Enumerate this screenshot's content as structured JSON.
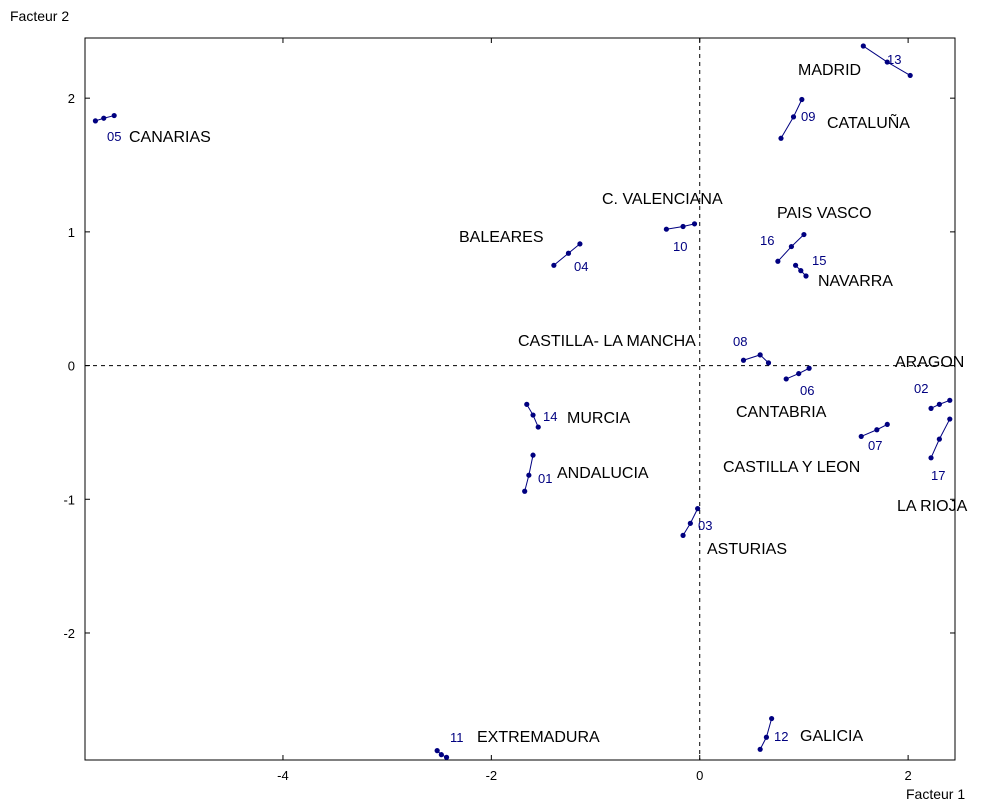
{
  "chart_data": {
    "type": "scatter",
    "xlabel": "Facteur 1",
    "ylabel": "Facteur 2",
    "xlim": [
      -5.9,
      2.45
    ],
    "ylim": [
      -2.95,
      2.45
    ],
    "xticks": [
      -4,
      -2,
      0,
      2
    ],
    "yticks": [
      -2,
      -1,
      0,
      1,
      2
    ],
    "reference_lines": {
      "x": 0,
      "y": 0,
      "style": "dashed"
    },
    "point_color": "#000080",
    "regions": [
      {
        "code": "01",
        "name": "ANDALUCIA",
        "points": [
          [
            -1.68,
            -0.94
          ],
          [
            -1.64,
            -0.82
          ],
          [
            -1.6,
            -0.67
          ]
        ]
      },
      {
        "code": "02",
        "name": "ARAGON",
        "points": [
          [
            2.22,
            -0.32
          ],
          [
            2.3,
            -0.29
          ],
          [
            2.4,
            -0.26
          ]
        ]
      },
      {
        "code": "03",
        "name": "ASTURIAS",
        "points": [
          [
            -0.16,
            -1.27
          ],
          [
            -0.09,
            -1.18
          ],
          [
            -0.02,
            -1.07
          ]
        ]
      },
      {
        "code": "04",
        "name": "BALEARES",
        "points": [
          [
            -1.4,
            0.75
          ],
          [
            -1.26,
            0.84
          ],
          [
            -1.15,
            0.91
          ]
        ]
      },
      {
        "code": "05",
        "name": "CANARIAS",
        "points": [
          [
            -5.8,
            1.83
          ],
          [
            -5.72,
            1.85
          ],
          [
            -5.62,
            1.87
          ]
        ]
      },
      {
        "code": "06",
        "name": "CANTABRIA",
        "points": [
          [
            0.83,
            -0.1
          ],
          [
            0.95,
            -0.06
          ],
          [
            1.05,
            -0.02
          ]
        ]
      },
      {
        "code": "07",
        "name": "CASTILLA Y LEON",
        "points": [
          [
            1.55,
            -0.53
          ],
          [
            1.7,
            -0.48
          ],
          [
            1.8,
            -0.44
          ]
        ]
      },
      {
        "code": "08",
        "name": "CASTILLA- LA MANCHA",
        "points": [
          [
            0.42,
            0.04
          ],
          [
            0.58,
            0.08
          ],
          [
            0.66,
            0.02
          ]
        ]
      },
      {
        "code": "09",
        "name": "CATALUÑA",
        "points": [
          [
            0.78,
            1.7
          ],
          [
            0.9,
            1.86
          ],
          [
            0.98,
            1.99
          ]
        ]
      },
      {
        "code": "10",
        "name": "C. VALENCIANA",
        "points": [
          [
            -0.32,
            1.02
          ],
          [
            -0.16,
            1.04
          ],
          [
            -0.05,
            1.06
          ]
        ]
      },
      {
        "code": "11",
        "name": "EXTREMADURA",
        "points": [
          [
            -2.52,
            -2.88
          ],
          [
            -2.48,
            -2.91
          ],
          [
            -2.43,
            -2.93
          ]
        ]
      },
      {
        "code": "12",
        "name": "GALICIA",
        "points": [
          [
            0.58,
            -2.87
          ],
          [
            0.64,
            -2.78
          ],
          [
            0.69,
            -2.64
          ]
        ]
      },
      {
        "code": "13",
        "name": "MADRID",
        "points": [
          [
            1.57,
            2.39
          ],
          [
            1.8,
            2.27
          ],
          [
            2.02,
            2.17
          ]
        ]
      },
      {
        "code": "14",
        "name": "MURCIA",
        "points": [
          [
            -1.66,
            -0.29
          ],
          [
            -1.6,
            -0.37
          ],
          [
            -1.55,
            -0.46
          ]
        ]
      },
      {
        "code": "15",
        "name": "NAVARRA",
        "points": [
          [
            0.92,
            0.75
          ],
          [
            0.97,
            0.71
          ],
          [
            1.02,
            0.67
          ]
        ]
      },
      {
        "code": "16",
        "name": "PAIS VASCO",
        "points": [
          [
            0.75,
            0.78
          ],
          [
            0.88,
            0.89
          ],
          [
            1.0,
            0.98
          ]
        ]
      },
      {
        "code": "17",
        "name": "LA RIOJA",
        "points": [
          [
            2.22,
            -0.69
          ],
          [
            2.3,
            -0.55
          ],
          [
            2.4,
            -0.4
          ]
        ]
      }
    ]
  }
}
